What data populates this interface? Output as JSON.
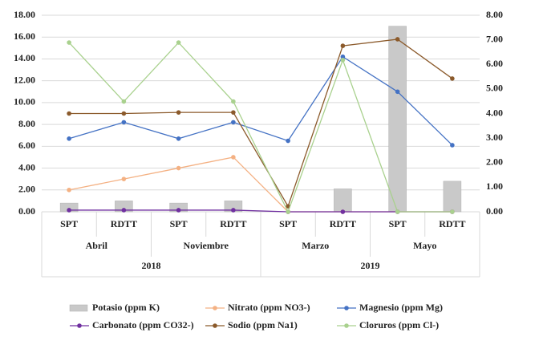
{
  "chart_data": {
    "type": "combo",
    "categories": [
      "SPT",
      "RDTT",
      "SPT",
      "RDTT",
      "SPT",
      "RDTT",
      "SPT",
      "RDTT"
    ],
    "group_labels": [
      "Abril",
      "Noviembre",
      "Marzo",
      "Mayo"
    ],
    "year_labels": [
      "2018",
      "2019"
    ],
    "series": [
      {
        "name": "Potasio (ppm K)",
        "kind": "bar",
        "color": "#c9c9c9",
        "values": [
          0.8,
          1.0,
          0.8,
          1.0,
          0,
          2.1,
          17.0,
          2.8
        ]
      },
      {
        "name": "Nitrato (ppm NO3-)",
        "kind": "line",
        "color": "#f4b183",
        "values": [
          2.0,
          3.0,
          4.0,
          5.0,
          0,
          0,
          0,
          0
        ]
      },
      {
        "name": "Magnesio (ppm Mg)",
        "kind": "line",
        "color": "#4472c4",
        "values": [
          6.7,
          8.2,
          6.7,
          8.2,
          6.5,
          14.2,
          11.0,
          6.1
        ]
      },
      {
        "name": "Carbonato (ppm CO32-)",
        "kind": "line",
        "color": "#7030a0",
        "values": [
          0.15,
          0.15,
          0.15,
          0.15,
          0,
          0,
          0,
          0
        ]
      },
      {
        "name": "Sodio (ppm Na1)",
        "kind": "line",
        "color": "#8b5a2b",
        "values": [
          9.0,
          9.0,
          9.1,
          9.1,
          0.5,
          15.2,
          15.8,
          12.2
        ]
      },
      {
        "name": "Cloruros (ppm Cl-)",
        "kind": "line",
        "color": "#a9d18e",
        "values": [
          15.5,
          10.1,
          15.5,
          10.1,
          0,
          13.9,
          0,
          0
        ]
      }
    ],
    "ylim": [
      0,
      18
    ],
    "yticks": [
      {
        "value": 0,
        "label": "0.00"
      },
      {
        "value": 2,
        "label": "2.00"
      },
      {
        "value": 4,
        "label": "4.00"
      },
      {
        "value": 6,
        "label": "6.00"
      },
      {
        "value": 8,
        "label": "8.00"
      },
      {
        "value": 10,
        "label": "10.00"
      },
      {
        "value": 12,
        "label": "12.00"
      },
      {
        "value": 14,
        "label": "14.00"
      },
      {
        "value": 16,
        "label": "16.00"
      },
      {
        "value": 18,
        "label": "18.00"
      }
    ],
    "y2lim": [
      0,
      8
    ],
    "y2ticks": [
      {
        "value": 0,
        "label": "0.00"
      },
      {
        "value": 1,
        "label": "1.00"
      },
      {
        "value": 2,
        "label": "2.00"
      },
      {
        "value": 3,
        "label": "3.00"
      },
      {
        "value": 4,
        "label": "4.00"
      },
      {
        "value": 5,
        "label": "5.00"
      },
      {
        "value": 6,
        "label": "6.00"
      },
      {
        "value": 7,
        "label": "7.00"
      },
      {
        "value": 8,
        "label": "8.00"
      }
    ],
    "grid": true
  }
}
